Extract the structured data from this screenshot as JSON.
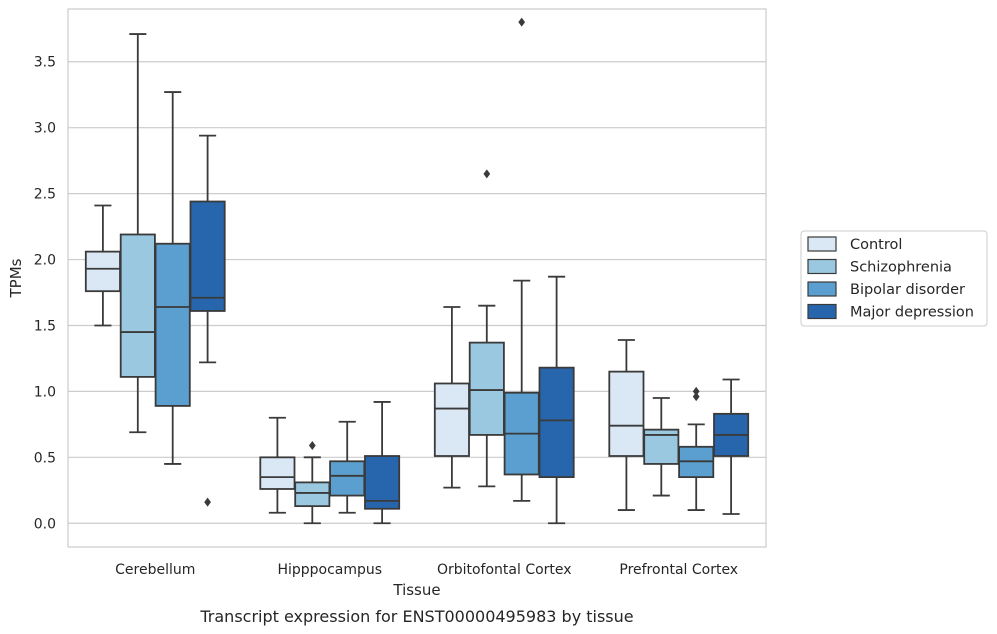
{
  "chart_data": {
    "type": "boxplot",
    "xlabel": "Tissue",
    "ylabel": "TPMs",
    "caption": "Transcript expression for ENST00000495983 by tissue",
    "ylim": [
      -0.18,
      3.9
    ],
    "yticks": [
      "0.0",
      "0.5",
      "1.0",
      "1.5",
      "2.0",
      "2.5",
      "3.0",
      "3.5"
    ],
    "grid": true,
    "legend_position": "right",
    "categories": [
      "Cerebellum",
      "Hipppocampus",
      "Orbitofontal Cortex",
      "Prefrontal Cortex"
    ],
    "series": [
      {
        "name": "Control",
        "color": "#dae8f5",
        "boxes": [
          {
            "whislo": 1.5,
            "q1": 1.76,
            "med": 1.93,
            "q3": 2.06,
            "whishi": 2.41,
            "fliers": []
          },
          {
            "whislo": 0.08,
            "q1": 0.26,
            "med": 0.35,
            "q3": 0.5,
            "whishi": 0.8,
            "fliers": []
          },
          {
            "whislo": 0.27,
            "q1": 0.51,
            "med": 0.87,
            "q3": 1.06,
            "whishi": 1.64,
            "fliers": []
          },
          {
            "whislo": 0.1,
            "q1": 0.51,
            "med": 0.74,
            "q3": 1.15,
            "whishi": 1.39,
            "fliers": []
          }
        ]
      },
      {
        "name": "Schizophrenia",
        "color": "#9ac8e0",
        "boxes": [
          {
            "whislo": 0.69,
            "q1": 1.11,
            "med": 1.45,
            "q3": 2.19,
            "whishi": 3.71,
            "fliers": []
          },
          {
            "whislo": 0.0,
            "q1": 0.13,
            "med": 0.23,
            "q3": 0.31,
            "whishi": 0.5,
            "fliers": [
              0.59
            ]
          },
          {
            "whislo": 0.28,
            "q1": 0.67,
            "med": 1.01,
            "q3": 1.37,
            "whishi": 1.65,
            "fliers": [
              2.65
            ]
          },
          {
            "whislo": 0.21,
            "q1": 0.45,
            "med": 0.67,
            "q3": 0.71,
            "whishi": 0.95,
            "fliers": []
          }
        ]
      },
      {
        "name": "Bipolar disorder",
        "color": "#5a9fcf",
        "boxes": [
          {
            "whislo": 0.45,
            "q1": 0.89,
            "med": 1.64,
            "q3": 2.12,
            "whishi": 3.27,
            "fliers": []
          },
          {
            "whislo": 0.08,
            "q1": 0.21,
            "med": 0.36,
            "q3": 0.47,
            "whishi": 0.77,
            "fliers": []
          },
          {
            "whislo": 0.17,
            "q1": 0.37,
            "med": 0.68,
            "q3": 0.99,
            "whishi": 1.84,
            "fliers": [
              3.8
            ]
          },
          {
            "whislo": 0.1,
            "q1": 0.35,
            "med": 0.47,
            "q3": 0.58,
            "whishi": 0.75,
            "fliers": [
              0.96,
              1.0
            ]
          }
        ]
      },
      {
        "name": "Major depression",
        "color": "#2766ad",
        "boxes": [
          {
            "whislo": 1.22,
            "q1": 1.61,
            "med": 1.71,
            "q3": 2.44,
            "whishi": 2.94,
            "fliers": [
              0.16
            ]
          },
          {
            "whislo": 0.0,
            "q1": 0.11,
            "med": 0.17,
            "q3": 0.51,
            "whishi": 0.92,
            "fliers": []
          },
          {
            "whislo": 0.0,
            "q1": 0.35,
            "med": 0.78,
            "q3": 1.18,
            "whishi": 1.87,
            "fliers": []
          },
          {
            "whislo": 0.07,
            "q1": 0.51,
            "med": 0.67,
            "q3": 0.83,
            "whishi": 1.09,
            "fliers": []
          }
        ]
      }
    ]
  }
}
